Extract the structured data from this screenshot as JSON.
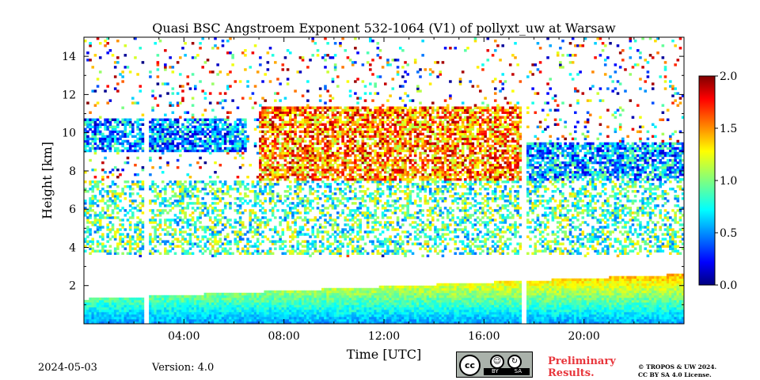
{
  "chart_data": {
    "type": "heatmap",
    "title": "Quasi BSC Angstroem Exponent 532-1064 (V1) of pollyxt_uw at Warsaw",
    "xlabel": "Time [UTC]",
    "ylabel": "Height [km]",
    "xlim_hours": [
      0,
      24
    ],
    "ylim_km": [
      0,
      15
    ],
    "x_ticks": [
      {
        "value": 4,
        "label": "04:00"
      },
      {
        "value": 8,
        "label": "08:00"
      },
      {
        "value": 12,
        "label": "12:00"
      },
      {
        "value": 16,
        "label": "16:00"
      },
      {
        "value": 20,
        "label": "20:00"
      }
    ],
    "y_ticks": [
      {
        "value": 2,
        "label": "2"
      },
      {
        "value": 4,
        "label": "4"
      },
      {
        "value": 6,
        "label": "6"
      },
      {
        "value": 8,
        "label": "8"
      },
      {
        "value": 10,
        "label": "10"
      },
      {
        "value": 12,
        "label": "12"
      },
      {
        "value": 14,
        "label": "14"
      }
    ],
    "colorbar": {
      "colormap": "jet",
      "range": [
        0.0,
        2.0
      ],
      "ticks": [
        {
          "value": 0.0,
          "label": "0.0"
        },
        {
          "value": 0.5,
          "label": "0.5"
        },
        {
          "value": 1.0,
          "label": "1.0"
        },
        {
          "value": 1.5,
          "label": "1.5"
        },
        {
          "value": 2.0,
          "label": "2.0"
        }
      ]
    },
    "data_gaps_hours": [
      2.5,
      17.6
    ],
    "layers": [
      {
        "name": "boundary layer",
        "t_start": 0,
        "t_end": 24,
        "h_bottom": 0,
        "h_top_start": 1.3,
        "h_top_end": 2.6,
        "value_start": 0.55,
        "value_end": 1.4
      },
      {
        "name": "aerosol layer",
        "t_start": 0,
        "t_end": 24,
        "h_bottom": 3.6,
        "h_top": 7.5,
        "value": 0.9
      },
      {
        "name": "cloud layer early",
        "t_start": 0,
        "t_end": 6.5,
        "h_bottom": 9.0,
        "h_top": 10.7,
        "value": 0.55
      },
      {
        "name": "cloud layer midday",
        "t_start": 7,
        "t_end": 17.5,
        "h_bottom": 7.5,
        "h_top": 11.4,
        "value": 1.5
      },
      {
        "name": "cloud layer evening",
        "t_start": 17.6,
        "t_end": 24,
        "h_bottom": 6.5,
        "h_top": 9.5,
        "value": 0.6
      }
    ]
  },
  "footer": {
    "date": "2024-05-03",
    "version": "Version: 4.0",
    "license_badge_text": [
      "BY",
      "SA"
    ],
    "license_badge_cc": "cc",
    "preliminary": [
      "Preliminary",
      "Results."
    ],
    "copyright": [
      "© TROPOS & UW 2024.",
      "CC BY SA 4.0 License."
    ],
    "colors": {
      "preliminary": "#e8353b",
      "badge_bg": "#aab2ab"
    }
  }
}
